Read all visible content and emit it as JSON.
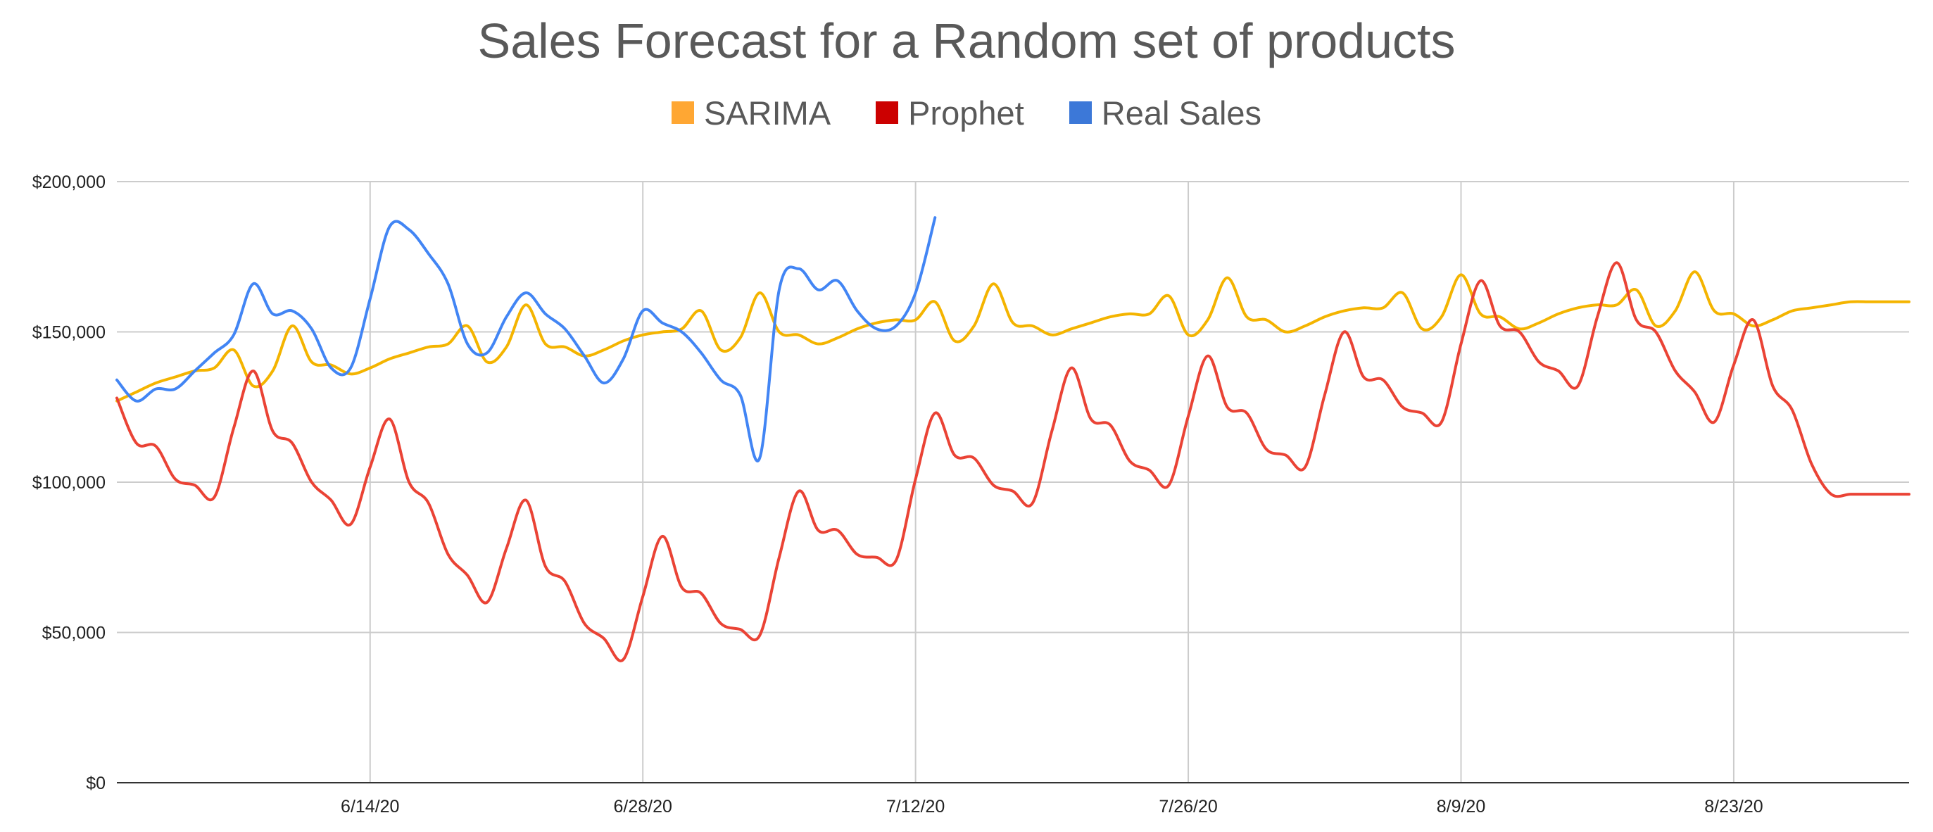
{
  "chart_data": {
    "type": "line",
    "title": "Sales Forecast for a Random set of products",
    "xlabel": "",
    "ylabel": "",
    "x_start": "6/1/20",
    "x_end": "9/1/20",
    "xlim": [
      0,
      92
    ],
    "ylim": [
      0,
      200000
    ],
    "y_ticks": [
      0,
      50000,
      100000,
      150000,
      200000
    ],
    "y_tick_labels": [
      "$0",
      "$50,000",
      "$100,000",
      "$150,000",
      "$200,000"
    ],
    "x_ticks": [
      {
        "label": "6/14/20"
      },
      {
        "label": "6/28/20"
      },
      {
        "label": "7/12/20"
      },
      {
        "label": "7/26/20"
      },
      {
        "label": "8/9/20"
      },
      {
        "label": "8/23/20"
      }
    ],
    "grid": true,
    "legend_position": "top-center",
    "series": [
      {
        "name": "SARIMA",
        "color": "#f4b400",
        "legend_color": "#ffa733",
        "x": [
          0,
          1,
          2,
          3,
          4,
          5,
          6,
          7,
          8,
          9,
          10,
          11,
          12,
          13,
          14,
          15,
          16,
          17,
          18,
          19,
          20,
          21,
          22,
          23,
          24,
          25,
          26,
          27,
          28,
          29,
          30,
          31,
          32,
          33,
          34,
          35,
          36,
          37,
          38,
          39,
          40,
          41,
          42,
          43,
          44,
          45,
          46,
          47,
          48,
          49,
          50,
          51,
          52,
          53,
          54,
          55,
          56,
          57,
          58,
          59,
          60,
          61,
          62,
          63,
          64,
          65,
          66,
          67,
          68,
          69,
          70,
          71,
          72,
          73,
          74,
          75,
          76,
          77,
          78,
          79,
          80,
          81,
          82,
          83,
          84,
          85,
          86,
          87,
          88,
          89,
          90,
          91,
          92
        ],
        "y": [
          127000,
          130000,
          133000,
          135000,
          137000,
          138000,
          144000,
          132000,
          137000,
          152000,
          140000,
          139000,
          136000,
          138000,
          141000,
          143000,
          145000,
          146000,
          152000,
          140000,
          145000,
          159000,
          146000,
          145000,
          142000,
          144000,
          147000,
          149000,
          150000,
          151000,
          157000,
          144000,
          148000,
          163000,
          150000,
          149000,
          146000,
          148000,
          151000,
          153000,
          154000,
          154000,
          160000,
          147000,
          152000,
          166000,
          153000,
          152000,
          149000,
          151000,
          153000,
          155000,
          156000,
          156000,
          162000,
          149000,
          154000,
          168000,
          155000,
          154000,
          150000,
          152000,
          155000,
          157000,
          158000,
          158000,
          163000,
          151000,
          155000,
          169000,
          156000,
          155000,
          151000,
          153000,
          156000,
          158000,
          159000,
          159000,
          164000,
          152000,
          157000,
          170000,
          157000,
          156000,
          152000,
          154000,
          157000,
          158000,
          159000,
          160000,
          160000,
          160000,
          160000
        ]
      },
      {
        "name": "Prophet",
        "color": "#ea4335",
        "legend_color": "#cc0000",
        "x": [
          0,
          1,
          2,
          3,
          4,
          5,
          6,
          7,
          8,
          9,
          10,
          11,
          12,
          13,
          14,
          15,
          16,
          17,
          18,
          19,
          20,
          21,
          22,
          23,
          24,
          25,
          26,
          27,
          28,
          29,
          30,
          31,
          32,
          33,
          34,
          35,
          36,
          37,
          38,
          39,
          40,
          41,
          42,
          43,
          44,
          45,
          46,
          47,
          48,
          49,
          50,
          51,
          52,
          53,
          54,
          55,
          56,
          57,
          58,
          59,
          60,
          61,
          62,
          63,
          64,
          65,
          66,
          67,
          68,
          69,
          70,
          71,
          72,
          73,
          74,
          75,
          76,
          77,
          78,
          79,
          80,
          81,
          82,
          83,
          84,
          85,
          86,
          87,
          88,
          89,
          90,
          91,
          92
        ],
        "y": [
          128000,
          113000,
          112000,
          101000,
          99000,
          95000,
          118000,
          137000,
          117000,
          113000,
          100000,
          94000,
          86000,
          105000,
          121000,
          100000,
          93000,
          76000,
          69000,
          60000,
          78000,
          94000,
          72000,
          67000,
          53000,
          48000,
          41000,
          62000,
          82000,
          65000,
          63000,
          53000,
          51000,
          49000,
          75000,
          97000,
          84000,
          84000,
          76000,
          75000,
          74000,
          101000,
          123000,
          109000,
          108000,
          99000,
          97000,
          93000,
          117000,
          138000,
          121000,
          119000,
          107000,
          104000,
          99000,
          122000,
          142000,
          125000,
          123000,
          111000,
          109000,
          105000,
          129000,
          150000,
          135000,
          134000,
          125000,
          123000,
          120000,
          146000,
          167000,
          152000,
          150000,
          140000,
          137000,
          132000,
          155000,
          173000,
          154000,
          150000,
          137000,
          130000,
          120000,
          139000,
          154000,
          132000,
          124000,
          106000,
          96000,
          96000,
          96000,
          96000,
          96000
        ]
      },
      {
        "name": "Real Sales",
        "color": "#4285f4",
        "legend_color": "#3c78d8",
        "x": [
          0,
          1,
          2,
          3,
          4,
          5,
          6,
          7,
          8,
          9,
          10,
          11,
          12,
          13,
          14,
          15,
          16,
          17,
          18,
          19,
          20,
          21,
          22,
          23,
          24,
          25,
          26,
          27,
          28,
          29,
          30,
          31,
          32,
          33,
          34,
          35,
          36,
          37,
          38,
          39,
          40,
          41,
          42
        ],
        "y": [
          134000,
          127000,
          131000,
          131000,
          137000,
          143000,
          149000,
          166000,
          156000,
          157000,
          151000,
          138000,
          138000,
          161000,
          185000,
          184000,
          176000,
          166000,
          146000,
          143000,
          155000,
          163000,
          156000,
          151000,
          142000,
          133000,
          141000,
          157000,
          153000,
          150000,
          143000,
          134000,
          129000,
          108000,
          164000,
          171000,
          164000,
          167000,
          157000,
          151000,
          152000,
          163000,
          188000
        ]
      }
    ]
  }
}
